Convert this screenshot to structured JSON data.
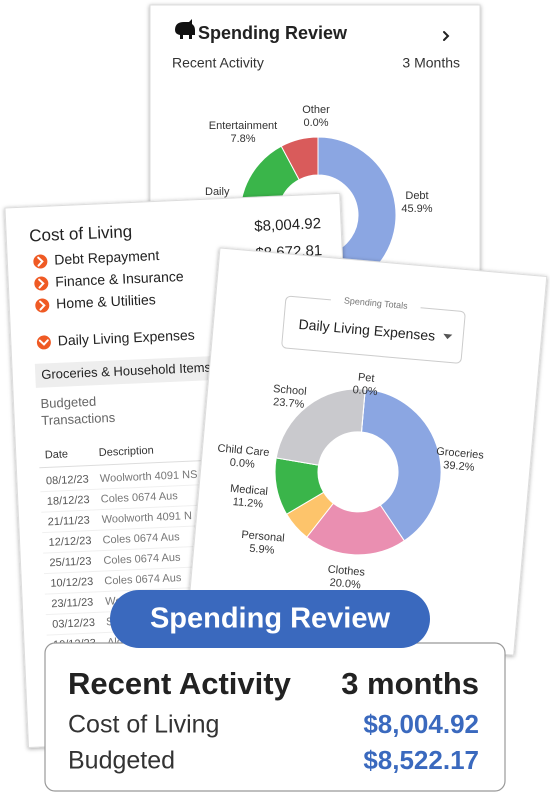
{
  "spending_card": {
    "title": "Spending Review",
    "subtitle": "Recent Activity",
    "period": "3 Months",
    "chart": {
      "categories": [
        "Debt",
        "Daily",
        "Entertainment",
        "Other"
      ],
      "values": [
        45.9,
        46.3,
        7.8,
        0.0
      ],
      "value_labels": [
        "45.9%",
        null,
        "7.8%",
        "0.0%"
      ],
      "colors": [
        "#8ba6e2",
        "#3ab54a",
        "#d95b5b",
        "#c8c8cc"
      ]
    }
  },
  "cost_card": {
    "title": "Cost of Living",
    "amounts": [
      "$8,004.92",
      "$8,672.81"
    ],
    "items": [
      "Debt Repayment",
      "Finance & Insurance",
      "Home & Utilities",
      "Daily Living Expenses"
    ],
    "subcategory": "Groceries & Household Items",
    "sub_rows": [
      "Budgeted",
      "Transactions"
    ],
    "table": {
      "columns": [
        "Date",
        "Description"
      ],
      "rows": [
        [
          "08/12/23",
          "Woolworth 4091 NS"
        ],
        [
          "18/12/23",
          "Coles 0674 Aus"
        ],
        [
          "21/11/23",
          "Woolworth 4091 N"
        ],
        [
          "12/12/23",
          "Coles 0674 Aus"
        ],
        [
          "25/11/23",
          "Coles 0674 Aus"
        ],
        [
          "10/12/23",
          "Coles 0674 Aus"
        ],
        [
          "23/11/23",
          "Woo"
        ],
        [
          "03/12/23",
          "Se"
        ],
        [
          "10/12/23",
          "Ald"
        ]
      ]
    }
  },
  "breakdown_card": {
    "dropdown_label": "Spending Totals",
    "dropdown_value": "Daily Living Expenses",
    "chart": {
      "categories": [
        "Groceries",
        "Clothes",
        "Personal",
        "Medical",
        "Child Care",
        "School",
        "Pet"
      ],
      "values": [
        39.2,
        20.0,
        5.9,
        11.2,
        0.0,
        23.7,
        0.0
      ],
      "value_labels": [
        "39.2%",
        "20.0%",
        "5.9%",
        "11.2%",
        "0.0%",
        "23.7%",
        "0.0%"
      ],
      "colors": [
        "#8ba6e2",
        "#ea8fb1",
        "#fdc46b",
        "#3ab54a",
        "#7f7f7f",
        "#c9c9cd",
        "#9a9a9a"
      ]
    }
  },
  "summary": {
    "banner": "Spending Review",
    "heading": "Recent Activity",
    "period": "3 months",
    "rows": [
      [
        "Cost of Living",
        "$8,004.92"
      ],
      [
        "Budgeted",
        "$8,522.17"
      ]
    ]
  }
}
